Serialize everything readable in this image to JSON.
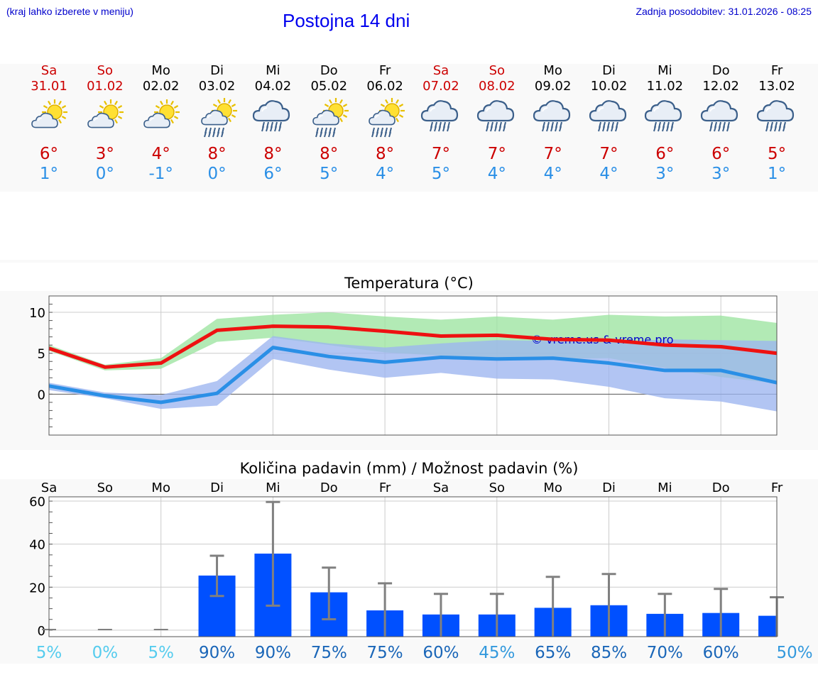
{
  "header": {
    "hint": "(kraj lahko izberete v meniju)",
    "title": "Postojna 14 dni",
    "updated": "Zadnja posodobitev: 31.01.2026 - 08:25"
  },
  "days": [
    {
      "name": "Sa",
      "date": "31.01",
      "weekend": true,
      "icon": "sun-cloud",
      "tmax": "6°",
      "tmin": "1°"
    },
    {
      "name": "So",
      "date": "01.02",
      "weekend": true,
      "icon": "sun-cloud",
      "tmax": "3°",
      "tmin": "0°"
    },
    {
      "name": "Mo",
      "date": "02.02",
      "weekend": false,
      "icon": "sun-cloud",
      "tmax": "4°",
      "tmin": "-1°"
    },
    {
      "name": "Di",
      "date": "03.02",
      "weekend": false,
      "icon": "sun-cloud-rain",
      "tmax": "8°",
      "tmin": "0°"
    },
    {
      "name": "Mi",
      "date": "04.02",
      "weekend": false,
      "icon": "cloud-rain",
      "tmax": "8°",
      "tmin": "6°"
    },
    {
      "name": "Do",
      "date": "05.02",
      "weekend": false,
      "icon": "sun-cloud-rain",
      "tmax": "8°",
      "tmin": "5°"
    },
    {
      "name": "Fr",
      "date": "06.02",
      "weekend": false,
      "icon": "sun-cloud-rain",
      "tmax": "8°",
      "tmin": "4°"
    },
    {
      "name": "Sa",
      "date": "07.02",
      "weekend": true,
      "icon": "cloud-rain",
      "tmax": "7°",
      "tmin": "5°"
    },
    {
      "name": "So",
      "date": "08.02",
      "weekend": true,
      "icon": "cloud-rain",
      "tmax": "7°",
      "tmin": "4°"
    },
    {
      "name": "Mo",
      "date": "09.02",
      "weekend": false,
      "icon": "cloud-rain",
      "tmax": "7°",
      "tmin": "4°"
    },
    {
      "name": "Di",
      "date": "10.02",
      "weekend": false,
      "icon": "cloud-rain",
      "tmax": "7°",
      "tmin": "4°"
    },
    {
      "name": "Mi",
      "date": "11.02",
      "weekend": false,
      "icon": "cloud-rain",
      "tmax": "6°",
      "tmin": "3°"
    },
    {
      "name": "Do",
      "date": "12.02",
      "weekend": false,
      "icon": "cloud-rain",
      "tmax": "6°",
      "tmin": "3°"
    },
    {
      "name": "Fr",
      "date": "13.02",
      "weekend": false,
      "icon": "cloud-rain",
      "tmax": "5°",
      "tmin": "1°"
    }
  ],
  "chart_data": [
    {
      "type": "line",
      "title": "Temperatura (°C)",
      "xlabel": "",
      "ylabel": "",
      "ylim": [
        -5,
        12
      ],
      "yticks": [
        0,
        5,
        10
      ],
      "categories": [
        "Sa",
        "So",
        "Mo",
        "Di",
        "Mi",
        "Do",
        "Fr",
        "Sa",
        "So",
        "Mo",
        "Di",
        "Mi",
        "Do",
        "Fr"
      ],
      "watermark": "© vreme.us & vreme.pro",
      "series": [
        {
          "name": "max",
          "color": "#ee1111",
          "values": [
            5.6,
            3.3,
            3.8,
            7.8,
            8.3,
            8.2,
            7.7,
            7.1,
            7.2,
            6.7,
            6.6,
            6.0,
            5.8,
            5.0
          ],
          "band_low": [
            5.3,
            2.9,
            3.1,
            6.4,
            6.9,
            6.0,
            5.1,
            4.7,
            4.5,
            4.3,
            4.4,
            3.2,
            2.1,
            1.3
          ],
          "band_high": [
            6.0,
            3.6,
            4.4,
            9.2,
            9.7,
            10.0,
            9.5,
            9.1,
            9.5,
            9.1,
            9.7,
            9.5,
            9.6,
            8.7
          ],
          "band_color": "#9ce4a0"
        },
        {
          "name": "min",
          "color": "#2a8fe6",
          "values": [
            1.0,
            -0.2,
            -1.0,
            0.1,
            5.7,
            4.6,
            3.9,
            4.5,
            4.3,
            4.4,
            3.8,
            2.9,
            2.9,
            1.4
          ],
          "band_low": [
            0.5,
            -0.5,
            -1.8,
            -1.4,
            4.3,
            3.0,
            2.0,
            2.6,
            1.9,
            1.8,
            0.9,
            -0.5,
            -0.9,
            -2.1
          ],
          "band_high": [
            1.4,
            0.2,
            -0.1,
            1.6,
            7.1,
            6.2,
            5.7,
            6.2,
            6.6,
            6.5,
            6.3,
            6.7,
            6.6,
            6.5
          ],
          "band_color": "#9cb5f0"
        }
      ]
    },
    {
      "type": "bar",
      "title": "Količina padavin (mm) / Možnost padavin (%)",
      "xlabel": "",
      "ylabel": "",
      "ylim": [
        -3,
        62
      ],
      "yticks": [
        0,
        20,
        40,
        60
      ],
      "categories": [
        "Sa",
        "So",
        "Mo",
        "Di",
        "Mi",
        "Do",
        "Fr",
        "Sa",
        "So",
        "Mo",
        "Di",
        "Mi",
        "Do",
        "Fr"
      ],
      "values": [
        0,
        0,
        0,
        25.4,
        35.6,
        17.6,
        9.2,
        7.3,
        7.3,
        10.4,
        11.6,
        7.6,
        8.0,
        6.7
      ],
      "err_low": [
        0,
        0,
        0,
        15.9,
        11.4,
        5.1,
        0,
        0,
        0,
        0,
        0,
        0,
        0,
        0
      ],
      "err_high": [
        0,
        0,
        0,
        34.6,
        59.6,
        29.1,
        21.8,
        16.9,
        16.9,
        24.8,
        26.1,
        16.9,
        19.2,
        15.3
      ],
      "bar_color": "#0050ff",
      "probability": [
        "5%",
        "0%",
        "5%",
        "90%",
        "90%",
        "75%",
        "75%",
        "60%",
        "45%",
        "65%",
        "85%",
        "70%",
        "60%",
        "50%"
      ],
      "probability_colors": [
        "#55ccee",
        "#55ccee",
        "#55ccee",
        "#1a66b8",
        "#1a66b8",
        "#1a66b8",
        "#1a66b8",
        "#1a66b8",
        "#3399dd",
        "#1a66b8",
        "#1a66b8",
        "#1a66b8",
        "#1a66b8",
        "#3399dd"
      ]
    }
  ]
}
